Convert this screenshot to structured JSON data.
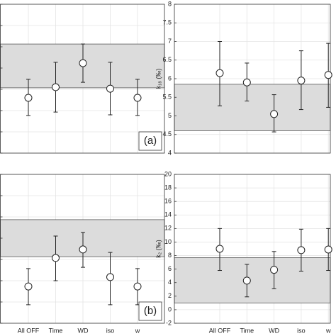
{
  "chart_data": [
    {
      "type": "errorbar",
      "categories": [
        null,
        null,
        null,
        null,
        null
      ],
      "values": [
        2.6,
        3.1,
        4.23,
        3.03,
        2.6
      ],
      "lower": [
        1.77,
        1.93,
        3.33,
        1.8,
        1.77
      ],
      "upper": [
        3.47,
        4.27,
        5.13,
        4.27,
        3.47
      ],
      "band": [
        3.07,
        5.13
      ],
      "ylim": [
        0,
        7
      ],
      "yticks": [
        0,
        1,
        2,
        3,
        4,
        5,
        6,
        7
      ],
      "tick_labels": false,
      "grid": true,
      "annotation": "(a)"
    },
    {
      "type": "errorbar",
      "categories": [
        null,
        null,
        null,
        null,
        null
      ],
      "ylabel": "k₁₈ (‰)",
      "values": [
        6.15,
        5.9,
        5.05,
        5.95,
        6.1
      ],
      "lower": [
        5.27,
        5.4,
        4.57,
        5.17,
        5.23
      ],
      "upper": [
        7.0,
        6.42,
        5.57,
        6.75,
        6.95
      ],
      "band": [
        4.6,
        5.85
      ],
      "ylim": [
        4,
        8
      ],
      "yticks": [
        4,
        4.5,
        5,
        5.5,
        6,
        6.5,
        7,
        7.5,
        8
      ],
      "tick_labels": true,
      "grid": true
    },
    {
      "type": "errorbar",
      "categories": [
        "All OFF",
        "Time",
        "WD",
        "iso",
        "w"
      ],
      "values": [
        1.73,
        3.07,
        3.47,
        2.17,
        1.73
      ],
      "lower": [
        0.87,
        2.0,
        2.63,
        0.87,
        0.87
      ],
      "upper": [
        2.57,
        4.1,
        4.27,
        3.33,
        2.57
      ],
      "band": [
        3.13,
        4.87
      ],
      "ylim": [
        0,
        7
      ],
      "yticks": [
        0,
        1,
        2,
        3,
        4,
        5,
        6,
        7
      ],
      "tick_labels": false,
      "grid": true,
      "annotation": "(b)"
    },
    {
      "type": "errorbar",
      "categories": [
        "All OFF",
        "Time",
        "WD",
        "iso",
        "w"
      ],
      "ylabel": "k₂ (‰)",
      "values": [
        9,
        4.3,
        5.9,
        8.8,
        8.9
      ],
      "lower": [
        5.8,
        1.9,
        3.1,
        5.7,
        5.8
      ],
      "upper": [
        12,
        6.7,
        8.6,
        11.9,
        12
      ],
      "band": [
        1,
        7.7
      ],
      "ylim": [
        -2,
        20
      ],
      "yticks": [
        -2,
        0,
        2,
        4,
        6,
        8,
        10,
        12,
        14,
        16,
        18,
        20
      ],
      "tick_labels": true,
      "grid": true
    }
  ]
}
